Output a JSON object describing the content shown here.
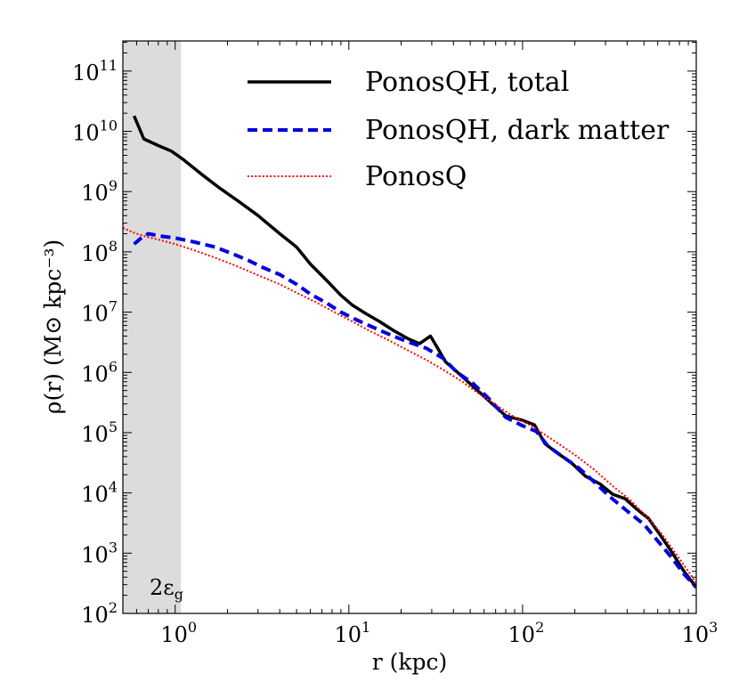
{
  "chart_data": {
    "type": "line",
    "x_scale": "log",
    "y_scale": "log",
    "xlim": [
      0.5,
      1000
    ],
    "ylim": [
      100,
      316227766016
    ],
    "xlabel": "r (kpc)",
    "ylabel": "ρ(r) (M⊙ kpc⁻³)",
    "x_ticks": [
      {
        "value": 1,
        "base": "10",
        "exp": "0"
      },
      {
        "value": 10,
        "base": "10",
        "exp": "1"
      },
      {
        "value": 100,
        "base": "10",
        "exp": "2"
      },
      {
        "value": 1000,
        "base": "10",
        "exp": "3"
      }
    ],
    "y_ticks": [
      {
        "value": 100,
        "base": "10",
        "exp": "2"
      },
      {
        "value": 1000,
        "base": "10",
        "exp": "3"
      },
      {
        "value": 10000,
        "base": "10",
        "exp": "4"
      },
      {
        "value": 100000,
        "base": "10",
        "exp": "5"
      },
      {
        "value": 1000000,
        "base": "10",
        "exp": "6"
      },
      {
        "value": 10000000,
        "base": "10",
        "exp": "7"
      },
      {
        "value": 100000000,
        "base": "10",
        "exp": "8"
      },
      {
        "value": 1000000000,
        "base": "10",
        "exp": "9"
      },
      {
        "value": 10000000000,
        "base": "10",
        "exp": "10"
      },
      {
        "value": 100000000000,
        "base": "10",
        "exp": "11"
      }
    ],
    "shaded_region": {
      "x0": 0.5,
      "x1": 1.08,
      "color": "#dcdcdc",
      "label": "2ε",
      "label_sub": "g"
    },
    "legend_position": "top-right",
    "series": [
      {
        "name": "PonosQH, total",
        "color": "#000000",
        "style": "solid",
        "x": [
          0.58,
          0.66,
          0.8,
          0.95,
          1.1,
          1.4,
          1.8,
          2.3,
          3.0,
          4.0,
          5.0,
          6.0,
          7.5,
          9.0,
          10.5,
          12.5,
          15.0,
          18.0,
          22.0,
          25.5,
          29.5,
          32.5,
          36.0,
          40.0,
          45.0,
          55.0,
          67.0,
          80.0,
          100.0,
          117.0,
          135.0,
          160.0,
          190.0,
          230.0,
          280.0,
          330.0,
          390.0,
          450.0,
          530.0,
          620.0,
          730.0,
          850.0,
          1000.0
        ],
        "values": [
          18000000000.0,
          7500000000.0,
          5800000000.0,
          4700000000.0,
          3500000000.0,
          2000000000.0,
          1150000000.0,
          700000000.0,
          400000000.0,
          200000000.0,
          120000000.0,
          63000000.0,
          33000000.0,
          19000000.0,
          13000000.0,
          9500000.0,
          7000000.0,
          5000000.0,
          3600000.0,
          3000000.0,
          4000000.0,
          2500000.0,
          1500000.0,
          1150000.0,
          850000.0,
          500000.0,
          300000.0,
          190000.0,
          160000.0,
          135000.0,
          65000.0,
          45000.0,
          32000.0,
          19000.0,
          14000.0,
          9500.0,
          8000.0,
          5500.0,
          3800.0,
          2000.0,
          1000.0,
          500.0,
          270.0
        ]
      },
      {
        "name": "PonosQH, dark matter",
        "color": "#0000dd",
        "style": "dashed",
        "x": [
          0.58,
          0.63,
          0.7,
          0.85,
          1.0,
          1.3,
          1.7,
          2.2,
          2.7,
          3.2,
          4.0,
          5.0,
          6.0,
          7.5,
          9.0,
          11.0,
          14.0,
          18.0,
          22.0,
          28.0,
          35.0,
          42.0,
          52.0,
          65.0,
          80.0,
          100.0,
          120.0,
          140.0,
          170.0,
          210.0,
          260.0,
          320.0,
          400.0,
          500.0,
          600.0,
          720.0,
          850.0,
          1000.0
        ],
        "values": [
          135000000.0,
          165000000.0,
          200000000.0,
          180000000.0,
          170000000.0,
          145000000.0,
          120000000.0,
          90000000.0,
          70000000.0,
          55000000.0,
          42000000.0,
          29000000.0,
          20000000.0,
          14000000.0,
          10000000.0,
          7500000.0,
          5500000.0,
          4000000.0,
          3200000.0,
          2500000.0,
          1700000.0,
          1000000.0,
          650000.0,
          350000.0,
          180000.0,
          130000.0,
          105000.0,
          60000.0,
          40000.0,
          26000.0,
          15000.0,
          8500.0,
          5000.0,
          3000.0,
          1600.0,
          850.0,
          450.0,
          270.0
        ]
      },
      {
        "name": "PonosQ",
        "color": "#ff0000",
        "style": "dotted",
        "x": [
          0.5,
          0.6,
          0.7,
          0.8,
          1.0,
          1.3,
          1.7,
          2.2,
          3.0,
          4.0,
          5.0,
          6.5,
          8.0,
          10.0,
          13.0,
          17.0,
          22.0,
          28.0,
          35.0,
          45.0,
          55.0,
          70.0,
          90.0,
          115.0,
          150.0,
          200.0,
          260.0,
          330.0,
          420.0,
          520.0,
          640.0,
          780.0,
          900.0,
          1000.0
        ],
        "values": [
          250000000.0,
          200000000.0,
          175000000.0,
          160000000.0,
          135000000.0,
          105000000.0,
          80000000.0,
          60000000.0,
          41000000.0,
          29000000.0,
          21000000.0,
          14500000.0,
          10500000.0,
          7500000.0,
          5000000.0,
          3400000.0,
          2300000.0,
          1600000.0,
          1100000.0,
          700000.0,
          460000.0,
          290000.0,
          180000.0,
          125000.0,
          75000.0,
          43000.0,
          24000.0,
          13000.0,
          7500.0,
          4000.0,
          2000.0,
          900.0,
          500.0,
          320.0
        ]
      }
    ]
  }
}
